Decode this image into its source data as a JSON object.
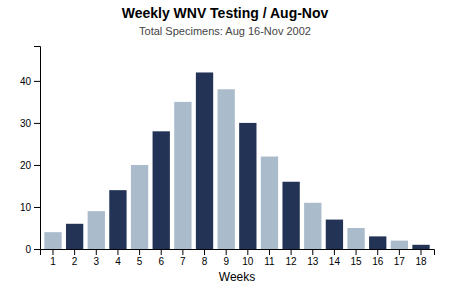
{
  "chart_data": {
    "type": "bar",
    "title": "Weekly WNV Testing / Aug-Nov",
    "subtitle": "Total Specimens: Aug 16-Nov 2002",
    "x_label": "Weeks",
    "categories": [
      "1",
      "2",
      "3",
      "4",
      "5",
      "6",
      "7",
      "8",
      "9",
      "10",
      "11",
      "12",
      "13",
      "14",
      "15",
      "16",
      "17",
      "18"
    ],
    "values": [
      4,
      6,
      9,
      14,
      20,
      28,
      35,
      42,
      38,
      30,
      22,
      16,
      11,
      7,
      5,
      3,
      2,
      1
    ],
    "colors": [
      "#aabbcc",
      "#223355",
      "#aabbcc",
      "#223355",
      "#aabbcc",
      "#223355",
      "#aabbcc",
      "#223355",
      "#aabbcc",
      "#223355",
      "#aabbcc",
      "#223355",
      "#aabbcc",
      "#223355",
      "#aabbcc",
      "#223355",
      "#aabbcc",
      "#223355"
    ],
    "ylim": [
      0,
      48.3
    ],
    "yticks": [
      0,
      10,
      20,
      30,
      40
    ],
    "grid": false
  }
}
